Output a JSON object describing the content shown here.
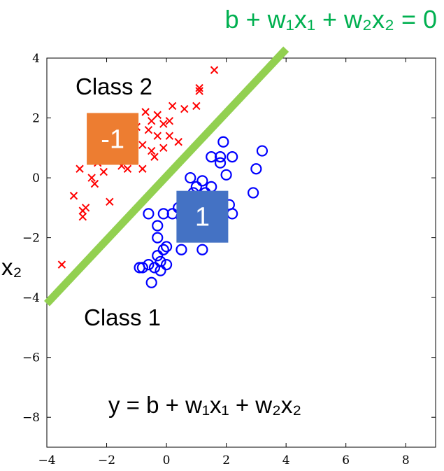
{
  "chart_data": {
    "type": "scatter",
    "title": "",
    "xlabel": "",
    "ylabel": "x₂",
    "xlim": [
      -4,
      9
    ],
    "ylim": [
      -9,
      4
    ],
    "xticks": [
      -4,
      -2,
      0,
      2,
      4,
      6,
      8
    ],
    "yticks": [
      -8,
      -6,
      -4,
      -2,
      0,
      2,
      4
    ],
    "grid": false,
    "series": [
      {
        "name": "",
        "marker": "x",
        "color": "#ff0000",
        "points": [
          [
            1.6,
            3.6
          ],
          [
            1.1,
            3.0
          ],
          [
            1.1,
            2.9
          ],
          [
            -0.7,
            2.2
          ],
          [
            -0.3,
            2.1
          ],
          [
            0.2,
            2.4
          ],
          [
            0.6,
            2.3
          ],
          [
            1.0,
            2.4
          ],
          [
            -0.5,
            1.9
          ],
          [
            -0.1,
            1.8
          ],
          [
            0.1,
            1.9
          ],
          [
            -0.6,
            1.6
          ],
          [
            -1.0,
            1.7
          ],
          [
            -0.3,
            1.4
          ],
          [
            0.1,
            1.4
          ],
          [
            0.4,
            1.2
          ],
          [
            -0.8,
            1.1
          ],
          [
            -1.2,
            1.0
          ],
          [
            -0.5,
            0.9
          ],
          [
            -0.1,
            1.0
          ],
          [
            -0.4,
            0.7
          ],
          [
            -0.8,
            0.3
          ],
          [
            -1.3,
            0.3
          ],
          [
            -1.5,
            0.4
          ],
          [
            -2.3,
            0.5
          ],
          [
            -2.1,
            0.2
          ],
          [
            -2.9,
            0.3
          ],
          [
            -2.5,
            0.0
          ],
          [
            -3.1,
            -0.6
          ],
          [
            -2.4,
            -0.2
          ],
          [
            -1.9,
            -0.8
          ],
          [
            -2.7,
            -1.0
          ],
          [
            -2.8,
            -1.1
          ],
          [
            -2.8,
            -1.3
          ],
          [
            -3.5,
            -2.9
          ]
        ]
      },
      {
        "name": "",
        "marker": "o",
        "color": "#0000ff",
        "points": [
          [
            1.9,
            1.2
          ],
          [
            3.2,
            0.9
          ],
          [
            1.8,
            0.7
          ],
          [
            2.2,
            0.7
          ],
          [
            1.5,
            0.7
          ],
          [
            1.8,
            0.5
          ],
          [
            3.0,
            0.3
          ],
          [
            2.0,
            0.1
          ],
          [
            0.8,
            0.0
          ],
          [
            1.2,
            -0.1
          ],
          [
            1.0,
            -0.3
          ],
          [
            1.5,
            -0.3
          ],
          [
            0.9,
            -0.5
          ],
          [
            1.3,
            -0.5
          ],
          [
            2.9,
            -0.5
          ],
          [
            0.6,
            -0.8
          ],
          [
            1.6,
            -0.8
          ],
          [
            0.4,
            -1.0
          ],
          [
            1.0,
            -1.0
          ],
          [
            2.1,
            -0.9
          ],
          [
            0.2,
            -1.2
          ],
          [
            -0.1,
            -1.2
          ],
          [
            -0.6,
            -1.2
          ],
          [
            2.2,
            -1.2
          ],
          [
            0.5,
            -1.3
          ],
          [
            0.9,
            -1.4
          ],
          [
            1.5,
            -1.4
          ],
          [
            -0.3,
            -1.6
          ],
          [
            0.6,
            -1.6
          ],
          [
            1.0,
            -1.9
          ],
          [
            -0.3,
            -2.0
          ],
          [
            0.0,
            -2.3
          ],
          [
            1.2,
            -2.4
          ],
          [
            0.5,
            -2.4
          ],
          [
            -0.1,
            -2.4
          ],
          [
            -0.3,
            -2.6
          ],
          [
            -0.2,
            -2.8
          ],
          [
            0.0,
            -2.9
          ],
          [
            -0.6,
            -2.9
          ],
          [
            -0.4,
            -3.0
          ],
          [
            -0.8,
            -3.0
          ],
          [
            -0.9,
            -3.0
          ],
          [
            -0.2,
            -3.1
          ],
          [
            -0.5,
            -3.5
          ]
        ]
      }
    ],
    "decision_line": {
      "x": [
        -4,
        4
      ],
      "y": [
        -4.2,
        4.3
      ],
      "color": "#92d050"
    },
    "annotations": {
      "line_equation": "b + w₁x₁ + w₂x₂ = 0",
      "class2_label": "Class 2",
      "class1_label": "Class 1",
      "model_equation": "y = b + w₁x₁ + w₂x₂",
      "neg_box": {
        "text": "-1",
        "color": "#ed7d31",
        "x": -1.8,
        "y": 1.3
      },
      "pos_box": {
        "text": "1",
        "color": "#4472c4",
        "x": 1.2,
        "y": -1.3
      }
    }
  }
}
